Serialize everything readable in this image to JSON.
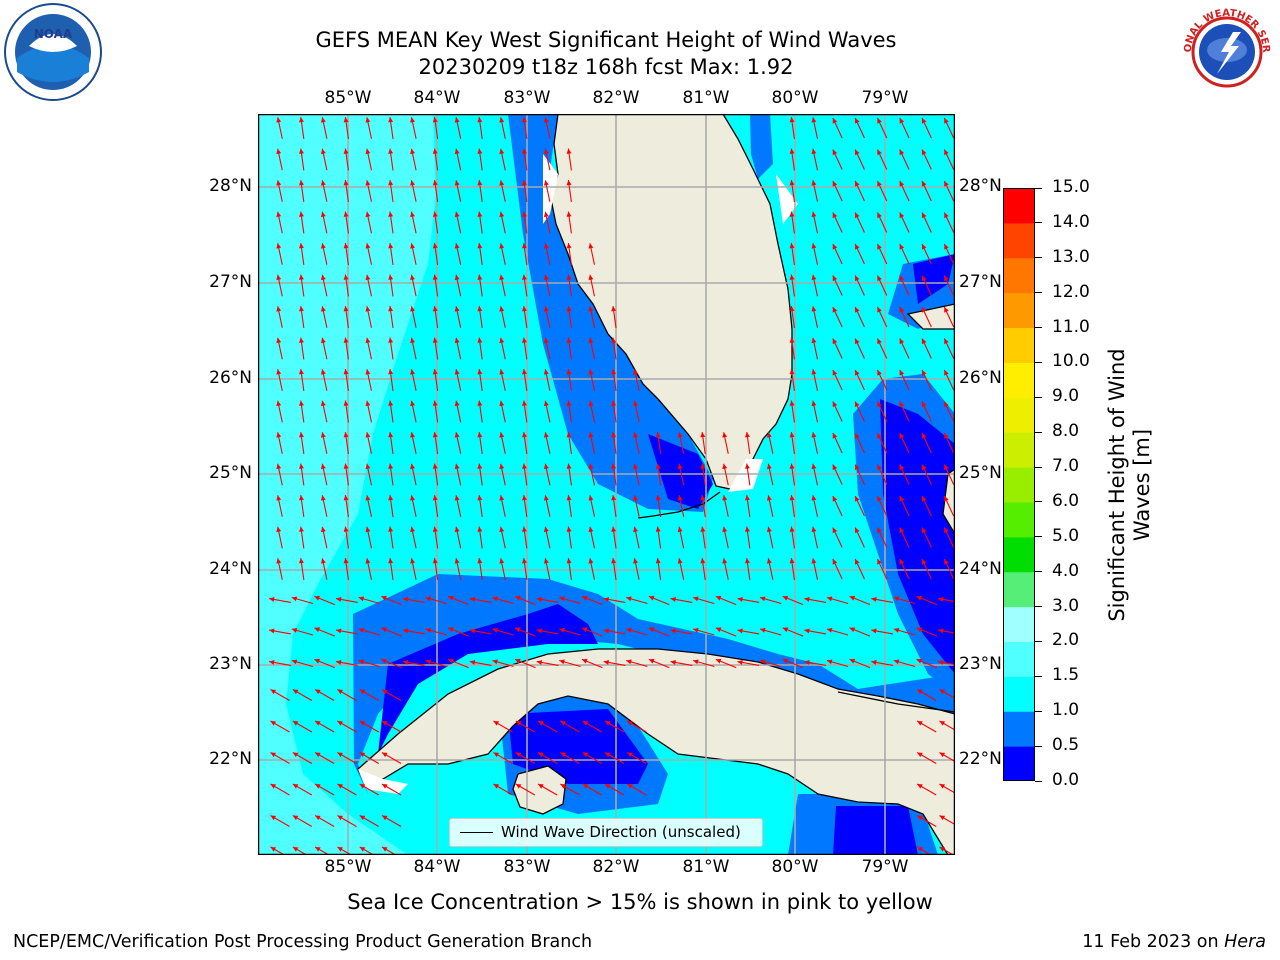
{
  "title_line1": "GEFS MEAN Key West Significant Height of Wind Waves",
  "title_line2": "20230209 t18z 168h fcst   Max: 1.92",
  "lon_labels": [
    "85°W",
    "84°W",
    "83°W",
    "82°W",
    "81°W",
    "80°W",
    "79°W"
  ],
  "lat_labels": [
    "28°N",
    "27°N",
    "26°N",
    "25°N",
    "24°N",
    "23°N",
    "22°N"
  ],
  "colorbar": {
    "label": "Significant Height of Wind Waves [m]",
    "ticks": [
      "15.0",
      "14.0",
      "13.0",
      "12.0",
      "11.0",
      "10.0",
      "9.0",
      "8.0",
      "7.0",
      "6.0",
      "5.0",
      "4.0",
      "3.0",
      "2.0",
      "1.5",
      "1.0",
      "0.5",
      "0.0"
    ],
    "colors": [
      "#0000ff",
      "#0078ff",
      "#00ffff",
      "#50ffff",
      "#a0ffff",
      "#55ee77",
      "#00dd00",
      "#55ee00",
      "#99ee00",
      "#ccee00",
      "#eeee00",
      "#ffee00",
      "#ffcc00",
      "#ff9900",
      "#ff7700",
      "#ff4400",
      "#ff0000"
    ]
  },
  "colors": {
    "land": "#eeeddd",
    "level_0_0_5": "#0000ff",
    "level_0_5_1_0": "#0078ff",
    "level_1_0_1_5": "#00ffff",
    "level_1_5_2_0": "#50ffff",
    "arrow": "#ff0000",
    "grid": "#aaaaaa"
  },
  "legend_label": "Wind Wave Direction (unscaled)",
  "sea_ice_note": "Sea Ice Concentration > 15% is shown in pink to yellow",
  "footer_left": "NCEP/EMC/Verification Post Processing Product Generation Branch",
  "footer_right_prefix": "11 Feb 2023 on ",
  "footer_right_host": "Hera",
  "logos": {
    "noaa": "NOAA",
    "nws": "NATIONAL WEATHER SERVICE"
  }
}
